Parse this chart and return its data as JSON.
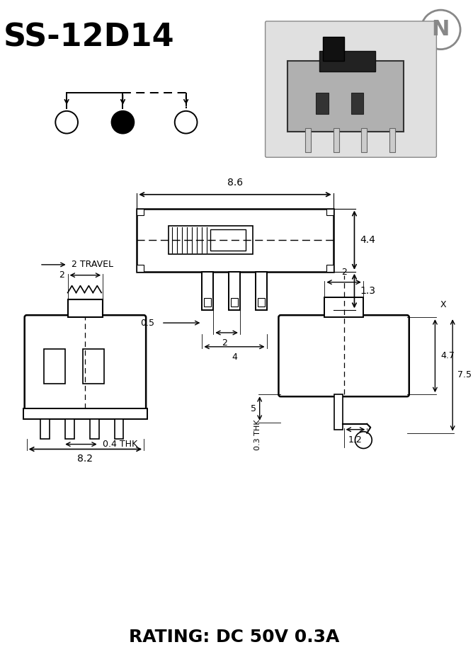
{
  "title": "SS-12D14",
  "rating": "RATING: DC 50V 0.3A",
  "bg_color": "#ffffff",
  "line_color": "#000000",
  "dims": {
    "top_width": "8.6",
    "top_height": "4.4",
    "pin_spacing": "2",
    "pin_width": "0.5",
    "pin_group": "4",
    "leg_height": "1.3",
    "side_width": "2",
    "side_height_travel": "2 TRAVEL",
    "side_total": "8.2",
    "side_thk": "0.4 THK",
    "end_width": "2",
    "end_47": "4.7",
    "end_75": "7.5",
    "end_12": "1.2",
    "end_thk": "0.3 THK",
    "end_5": "5",
    "end_x": "X"
  }
}
